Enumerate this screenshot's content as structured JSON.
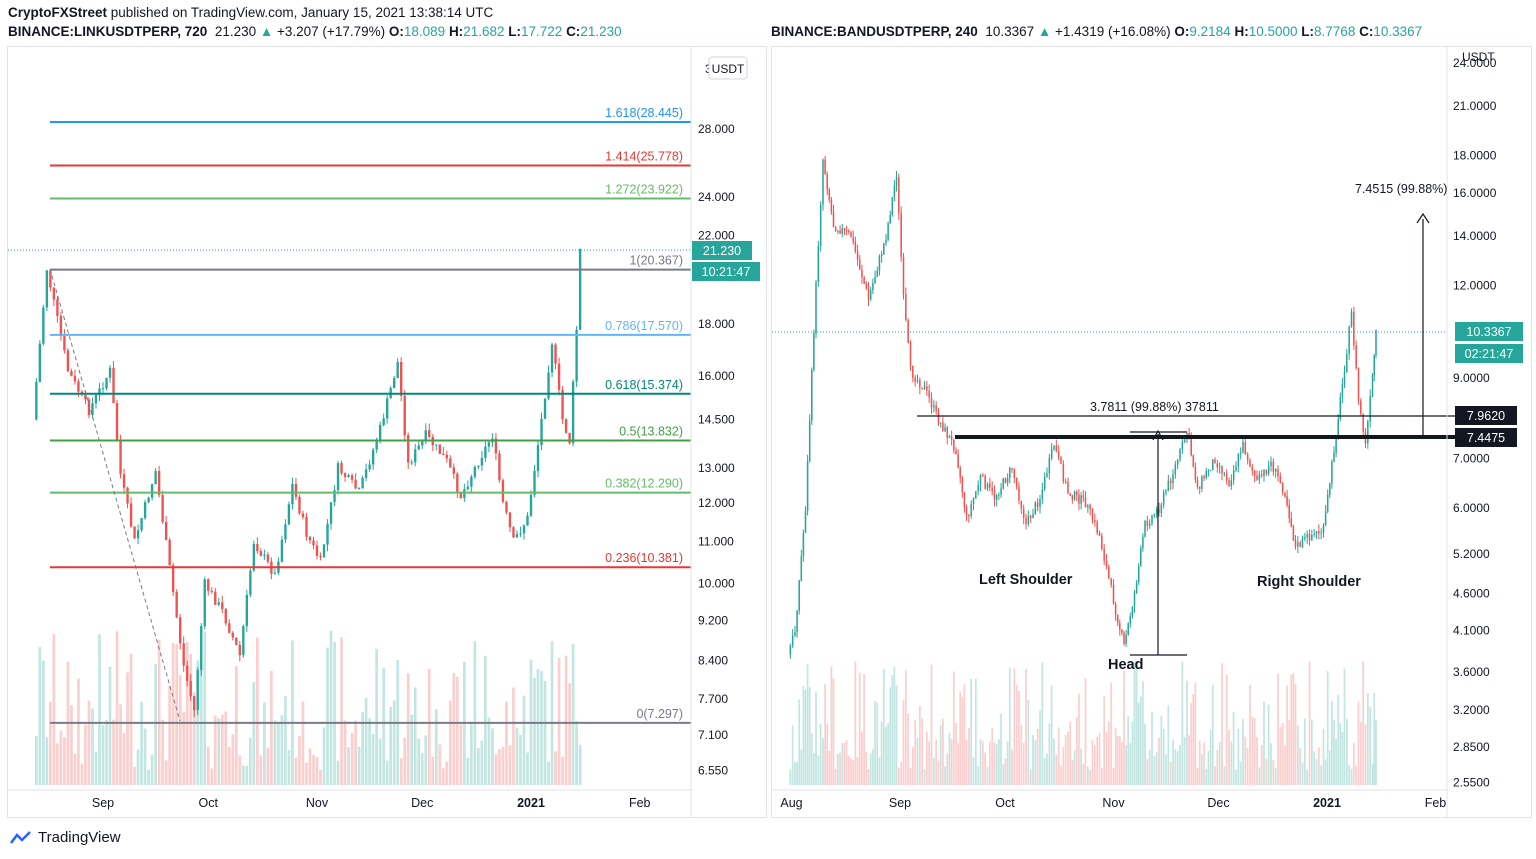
{
  "header": {
    "author": "CryptoFXStreet",
    "published_text": "published on TradingView.com, January 15, 2021 13:38:14 UTC"
  },
  "left": {
    "symbol": "BINANCE:LINKUSDTPERP, 720",
    "last": "21.230",
    "arrow": "▲",
    "change": "+3.207 (+17.79%)",
    "o_label": "O:",
    "o": "18.089",
    "h_label": "H:",
    "h": "21.682",
    "l_label": "L:",
    "l": "17.722",
    "c_label": "C:",
    "c": "21.230",
    "currency": "USDT",
    "price_tag": "21.230",
    "time_tag": "10:21:47",
    "colors": {
      "candle_up": "#26a69a",
      "candle_down": "#ef5350"
    }
  },
  "right": {
    "symbol": "BINANCE:BANDUSDTPERP, 240",
    "last": "10.3367",
    "arrow": "▲",
    "change": "+1.4319 (+16.08%)",
    "o_label": "O:",
    "o": "9.2184",
    "h_label": "H:",
    "h": "10.5000",
    "l_label": "L:",
    "l": "8.7768",
    "c_label": "C:",
    "c": "10.3367",
    "currency": "USDT",
    "price_tag": "10.3367",
    "time_tag": "02:21:47",
    "tag_7962": "7.9620",
    "tag_7447": "7.4475"
  },
  "brand": "TradingView",
  "chart_data": [
    {
      "type": "candlestick",
      "title": "BINANCE:LINKUSDTPERP, 720",
      "scale": "log",
      "ylim": [
        6.3,
        31
      ],
      "x_ticks": [
        "Sep",
        "Oct",
        "Nov",
        "Dec",
        "2021",
        "Feb"
      ],
      "y_ticks": [
        "28.000",
        "24.000",
        "22.000",
        "18.000",
        "16.000",
        "14.500",
        "13.000",
        "12.000",
        "11.000",
        "10.000",
        "9.200",
        "8.400",
        "7.700",
        "7.100",
        "6.550"
      ],
      "y_tick_values": [
        28,
        24,
        22,
        18,
        16,
        14.5,
        13,
        12,
        11,
        10,
        9.2,
        8.4,
        7.7,
        7.1,
        6.55
      ],
      "fib_levels": [
        {
          "label": "1.618(28.445)",
          "value": 28.445,
          "color": "#2196f3"
        },
        {
          "label": "1.414(25.778)",
          "value": 25.778,
          "color": "#e53935"
        },
        {
          "label": "1.272(23.922)",
          "value": 23.922,
          "color": "#66bb6a"
        },
        {
          "label": "1(20.367)",
          "value": 20.367,
          "color": "#787b86"
        },
        {
          "label": "0.786(17.570)",
          "value": 17.57,
          "color": "#64b5f6"
        },
        {
          "label": "0.618(15.374)",
          "value": 15.374,
          "color": "#00897b"
        },
        {
          "label": "0.5(13.832)",
          "value": 13.832,
          "color": "#43a047"
        },
        {
          "label": "0.382(12.290)",
          "value": 12.29,
          "color": "#66bb6a"
        },
        {
          "label": "0.236(10.381)",
          "value": 10.381,
          "color": "#e53935"
        },
        {
          "label": "0(7.297)",
          "value": 7.297,
          "color": "#787b86"
        }
      ],
      "close_path": [
        [
          "2020-08-12",
          14.5
        ],
        [
          "2020-08-16",
          20.4
        ],
        [
          "2020-08-22",
          16.2
        ],
        [
          "2020-08-28",
          14.8
        ],
        [
          "2020-09-03",
          16.2
        ],
        [
          "2020-09-06",
          12.8
        ],
        [
          "2020-09-10",
          11.0
        ],
        [
          "2020-09-16",
          12.9
        ],
        [
          "2020-09-21",
          9.8
        ],
        [
          "2020-09-24",
          8.3
        ],
        [
          "2020-09-27",
          7.5
        ],
        [
          "2020-09-30",
          10.0
        ],
        [
          "2020-10-05",
          9.4
        ],
        [
          "2020-10-10",
          8.5
        ],
        [
          "2020-10-14",
          11.0
        ],
        [
          "2020-10-20",
          10.2
        ],
        [
          "2020-10-25",
          12.5
        ],
        [
          "2020-10-29",
          11.2
        ],
        [
          "2020-11-02",
          10.5
        ],
        [
          "2020-11-07",
          13.0
        ],
        [
          "2020-11-13",
          12.3
        ],
        [
          "2020-11-19",
          14.2
        ],
        [
          "2020-11-24",
          16.5
        ],
        [
          "2020-11-27",
          13.1
        ],
        [
          "2020-12-02",
          14.0
        ],
        [
          "2020-12-08",
          13.2
        ],
        [
          "2020-12-12",
          12.2
        ],
        [
          "2020-12-17",
          13.2
        ],
        [
          "2020-12-21",
          14.0
        ],
        [
          "2020-12-24",
          12.0
        ],
        [
          "2020-12-27",
          11.0
        ],
        [
          "2020-12-31",
          11.6
        ],
        [
          "2021-01-04",
          14.5
        ],
        [
          "2021-01-07",
          17.3
        ],
        [
          "2021-01-10",
          14.5
        ],
        [
          "2021-01-12",
          13.8
        ],
        [
          "2021-01-14",
          17.8
        ],
        [
          "2021-01-15",
          21.23
        ]
      ]
    },
    {
      "type": "candlestick",
      "title": "BINANCE:BANDUSDTPERP, 240",
      "scale": "log",
      "ylim": [
        2.5,
        25
      ],
      "x_ticks": [
        "Aug",
        "Sep",
        "Oct",
        "Nov",
        "Dec",
        "2021",
        "Feb"
      ],
      "y_ticks": [
        "24.0000",
        "21.0000",
        "18.0000",
        "16.0000",
        "14.0000",
        "12.0000",
        "9.0000",
        "7.0000",
        "6.0000",
        "5.2000",
        "4.6000",
        "4.1000",
        "3.6000",
        "3.2000",
        "2.8500",
        "2.5500"
      ],
      "y_tick_values": [
        24,
        21,
        18,
        16,
        14,
        12,
        9,
        7,
        6,
        5.2,
        4.6,
        4.1,
        3.6,
        3.2,
        2.85,
        2.55
      ],
      "annotations": [
        "3.7811 (99.88%) 37811",
        "7.4515 (99.88%)",
        "Left Shoulder",
        "Head",
        "Right Shoulder"
      ],
      "levels": [
        {
          "label": "7.9620",
          "value": 7.962
        },
        {
          "label": "7.4475",
          "value": 7.4475
        }
      ],
      "close_path": [
        [
          "2020-07-31",
          3.8
        ],
        [
          "2020-08-02",
          4.1
        ],
        [
          "2020-08-05",
          6.0
        ],
        [
          "2020-08-08",
          12.0
        ],
        [
          "2020-08-10",
          17.8
        ],
        [
          "2020-08-13",
          14.5
        ],
        [
          "2020-08-18",
          14.0
        ],
        [
          "2020-08-23",
          11.5
        ],
        [
          "2020-08-28",
          14.0
        ],
        [
          "2020-08-31",
          17.0
        ],
        [
          "2020-09-02",
          11.5
        ],
        [
          "2020-09-04",
          9.2
        ],
        [
          "2020-09-08",
          8.7
        ],
        [
          "2020-09-12",
          7.9
        ],
        [
          "2020-09-17",
          7.2
        ],
        [
          "2020-09-20",
          5.8
        ],
        [
          "2020-09-24",
          6.6
        ],
        [
          "2020-09-28",
          6.2
        ],
        [
          "2020-10-03",
          6.8
        ],
        [
          "2020-10-07",
          5.7
        ],
        [
          "2020-10-11",
          6.2
        ],
        [
          "2020-10-15",
          7.3
        ],
        [
          "2020-10-19",
          6.3
        ],
        [
          "2020-10-24",
          6.1
        ],
        [
          "2020-10-28",
          5.5
        ],
        [
          "2020-11-01",
          4.5
        ],
        [
          "2020-11-04",
          3.9
        ],
        [
          "2020-11-07",
          4.6
        ],
        [
          "2020-11-10",
          5.7
        ],
        [
          "2020-11-14",
          6.0
        ],
        [
          "2020-11-18",
          6.7
        ],
        [
          "2020-11-22",
          7.6
        ],
        [
          "2020-11-25",
          6.4
        ],
        [
          "2020-11-30",
          7.0
        ],
        [
          "2020-12-04",
          6.5
        ],
        [
          "2020-12-08",
          7.3
        ],
        [
          "2020-12-12",
          6.5
        ],
        [
          "2020-12-16",
          6.9
        ],
        [
          "2020-12-20",
          6.3
        ],
        [
          "2020-12-23",
          5.3
        ],
        [
          "2020-12-27",
          5.5
        ],
        [
          "2020-12-31",
          5.6
        ],
        [
          "2021-01-03",
          7.2
        ],
        [
          "2021-01-06",
          9.3
        ],
        [
          "2021-01-08",
          11.0
        ],
        [
          "2021-01-10",
          8.4
        ],
        [
          "2021-01-12",
          7.3
        ],
        [
          "2021-01-14",
          9.0
        ],
        [
          "2021-01-15",
          10.3367
        ]
      ]
    }
  ]
}
